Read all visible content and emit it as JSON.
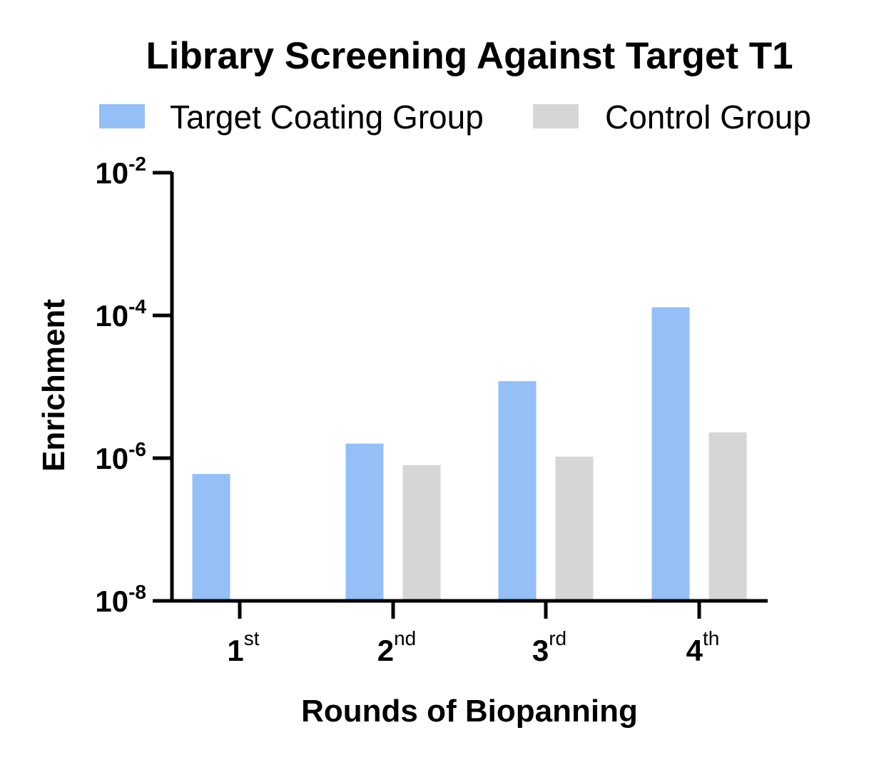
{
  "chart_data": {
    "type": "bar",
    "title": "Library Screening Against Target T1",
    "xlabel": "Rounds of Biopanning",
    "ylabel": "Enrichment",
    "yscale": "log",
    "ylim": [
      1e-08,
      0.01
    ],
    "categories": [
      {
        "base": "1",
        "sup": "st"
      },
      {
        "base": "2",
        "sup": "nd"
      },
      {
        "base": "3",
        "sup": "rd"
      },
      {
        "base": "4",
        "sup": "th"
      }
    ],
    "yticks": [
      {
        "value": 0.01,
        "base": "10",
        "exp": "-2"
      },
      {
        "value": 0.0001,
        "base": "10",
        "exp": "-4"
      },
      {
        "value": 1e-06,
        "base": "10",
        "exp": "-6"
      },
      {
        "value": 1e-08,
        "base": "10",
        "exp": "-8"
      }
    ],
    "series": [
      {
        "name": "Target Coating Group",
        "color": "#94bff7",
        "values": [
          6e-07,
          1.6e-06,
          1.2e-05,
          0.00013
        ]
      },
      {
        "name": "Control Group",
        "color": "#d6d6d6",
        "values": [
          null,
          8e-07,
          1.05e-06,
          2.3e-06
        ]
      }
    ],
    "legend": "top",
    "grid": false
  }
}
